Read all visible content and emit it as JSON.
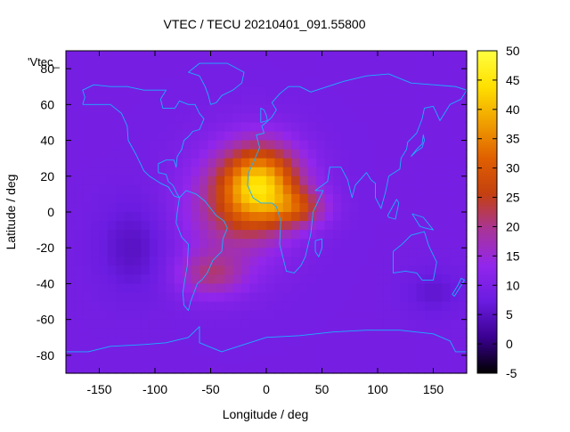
{
  "chart_data": {
    "type": "heatmap",
    "title": "VTEC / TECU 20210401_091.55800",
    "xlabel": "Longitude / deg",
    "ylabel": "Latitude / deg",
    "xlim": [
      -180,
      180
    ],
    "ylim": [
      -90,
      90
    ],
    "x_ticks": [
      -150,
      -100,
      -50,
      0,
      50,
      100,
      150
    ],
    "y_ticks": [
      -80,
      -60,
      -40,
      -20,
      0,
      20,
      40,
      60,
      80
    ],
    "x_tick_labels": [
      "-150",
      "-100",
      "-50",
      "0",
      "50",
      "100",
      "150"
    ],
    "y_tick_labels": [
      "-80",
      "-60",
      "-40",
      "-20",
      "0",
      "20",
      "40",
      "60",
      "80"
    ],
    "colorbar": {
      "range": [
        -5,
        50
      ],
      "ticks": [
        50,
        45,
        40,
        35,
        30,
        25,
        20,
        15,
        10,
        5,
        0,
        -5
      ],
      "tick_labels": [
        "50",
        "45",
        "40",
        "35",
        "30",
        "25",
        "20",
        "15",
        "10",
        "5",
        "0",
        "-5"
      ],
      "colors": [
        "#000000",
        "#3a0090",
        "#6a1ce0",
        "#9226ec",
        "#a8349a",
        "#c44010",
        "#e06000",
        "#f0a000",
        "#ffe000",
        "#ffff40"
      ]
    },
    "legend": "'Vtec_",
    "background_value": 9,
    "blobs": [
      {
        "lon": -5,
        "lat": 15,
        "sigma_lon": 35,
        "sigma_lat": 22,
        "amp": 30
      },
      {
        "lon": -30,
        "lat": 0,
        "sigma_lon": 45,
        "sigma_lat": 30,
        "amp": 10
      },
      {
        "lon": 30,
        "lat": 2,
        "sigma_lon": 25,
        "sigma_lat": 10,
        "amp": 12
      },
      {
        "lon": -50,
        "lat": -35,
        "sigma_lon": 30,
        "sigma_lat": 12,
        "amp": 10
      },
      {
        "lon": -120,
        "lat": -20,
        "sigma_lon": 30,
        "sigma_lat": 25,
        "amp": -4
      },
      {
        "lon": 150,
        "lat": -45,
        "sigma_lon": 25,
        "sigma_lat": 12,
        "amp": -3
      }
    ]
  }
}
